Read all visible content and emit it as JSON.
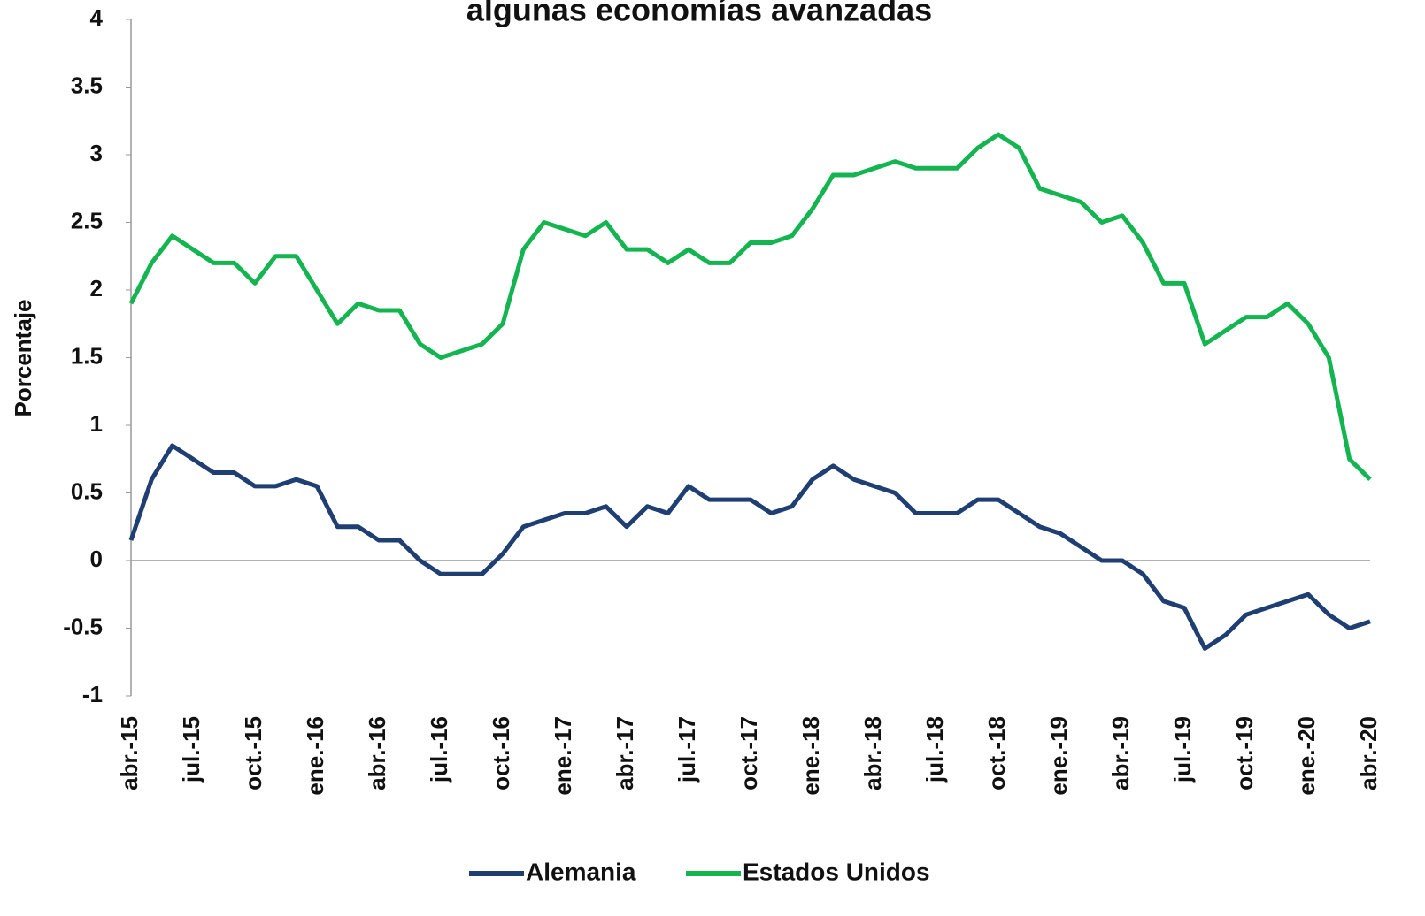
{
  "chart_data": {
    "type": "line",
    "title": "algunas economías avanzadas",
    "y_label": "Porcentaje",
    "categories": [
      "abr.-15",
      null,
      null,
      "jul.-15",
      null,
      null,
      "oct.-15",
      null,
      null,
      "ene.-16",
      null,
      null,
      "abr.-16",
      null,
      null,
      "jul.-16",
      null,
      null,
      "oct.-16",
      null,
      null,
      "ene.-17",
      null,
      null,
      "abr.-17",
      null,
      null,
      "jul.-17",
      null,
      null,
      "oct.-17",
      null,
      null,
      "ene.-18",
      null,
      null,
      "abr.-18",
      null,
      null,
      "jul.-18",
      null,
      null,
      "oct.-18",
      null,
      null,
      "ene.-19",
      null,
      null,
      "abr.-19",
      null,
      null,
      "jul.-19",
      null,
      null,
      "oct.-19",
      null,
      null,
      "ene.-20",
      null,
      null,
      "abr.-20"
    ],
    "series": [
      {
        "name": "Alemania",
        "color": "#1f3f73",
        "values": [
          0.15,
          0.6,
          0.85,
          0.75,
          0.65,
          0.65,
          0.55,
          0.55,
          0.6,
          0.55,
          0.25,
          0.25,
          0.15,
          0.15,
          0.0,
          -0.1,
          -0.1,
          -0.1,
          0.05,
          0.25,
          0.3,
          0.35,
          0.35,
          0.4,
          0.25,
          0.4,
          0.35,
          0.55,
          0.45,
          0.45,
          0.45,
          0.35,
          0.4,
          0.6,
          0.7,
          0.6,
          0.55,
          0.5,
          0.35,
          0.35,
          0.35,
          0.45,
          0.45,
          0.35,
          0.25,
          0.2,
          0.1,
          0.0,
          0.0,
          -0.1,
          -0.3,
          -0.35,
          -0.65,
          -0.55,
          -0.4,
          -0.35,
          -0.3,
          -0.25,
          -0.4,
          -0.5,
          -0.45
        ]
      },
      {
        "name": "Estados Unidos",
        "color": "#14b450",
        "values": [
          1.9,
          2.2,
          2.4,
          2.3,
          2.2,
          2.2,
          2.05,
          2.25,
          2.25,
          2.0,
          1.75,
          1.9,
          1.85,
          1.85,
          1.6,
          1.5,
          1.55,
          1.6,
          1.75,
          2.3,
          2.5,
          2.45,
          2.4,
          2.5,
          2.3,
          2.3,
          2.2,
          2.3,
          2.2,
          2.2,
          2.35,
          2.35,
          2.4,
          2.6,
          2.85,
          2.85,
          2.9,
          2.95,
          2.9,
          2.9,
          2.9,
          3.05,
          3.15,
          3.05,
          2.75,
          2.7,
          2.65,
          2.5,
          2.55,
          2.35,
          2.05,
          2.05,
          1.6,
          1.7,
          1.8,
          1.8,
          1.9,
          1.75,
          1.5,
          0.75,
          0.6
        ]
      }
    ],
    "ylim": [
      -1,
      4
    ],
    "yticks": [
      -1,
      -0.5,
      0,
      0.5,
      1,
      1.5,
      2,
      2.5,
      3,
      3.5,
      4
    ],
    "legend": "bottom"
  }
}
